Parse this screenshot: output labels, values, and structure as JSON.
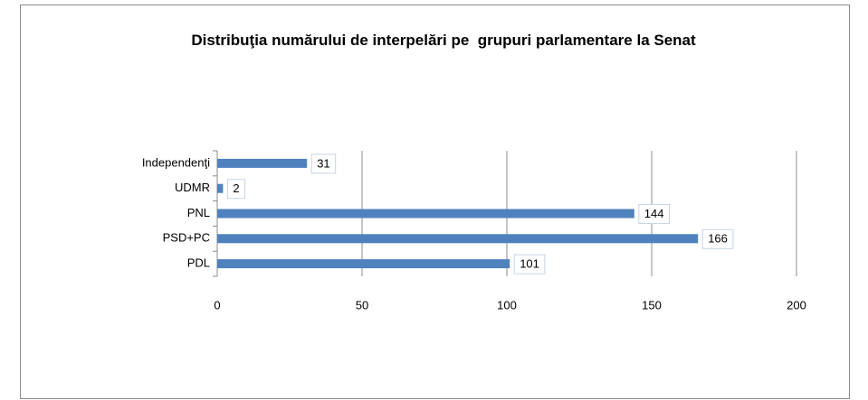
{
  "chart_data": {
    "type": "bar",
    "orientation": "horizontal",
    "title": "Distribuţia numărului de interpelări pe  grupuri parlamentare la Senat",
    "categories": [
      "PDL",
      "PSD+PC",
      "PNL",
      "UDMR",
      "Independenţi"
    ],
    "values": [
      101,
      166,
      144,
      2,
      31
    ],
    "color": "#4f81bd",
    "xlim": [
      0,
      200
    ],
    "xticks": [
      0,
      50,
      100,
      150,
      200
    ],
    "grid": true
  }
}
